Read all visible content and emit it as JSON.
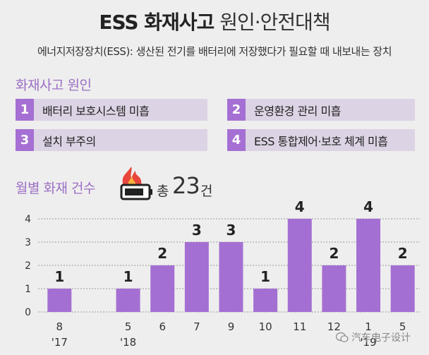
{
  "title_bold": "ESS 화재사고",
  "title_light": "원인·안전대책",
  "subtitle": "에너지저장장치(ESS): 생산된 전기를 배터리에 저장했다가 필요할 때 내보내는 장치",
  "causes_heading": "화재사고 원인",
  "causes": [
    {
      "num": "1",
      "text": "배터리 보호시스템 미흡"
    },
    {
      "num": "2",
      "text": "운영환경 관리 미흡"
    },
    {
      "num": "3",
      "text": "설치 부주의"
    },
    {
      "num": "4",
      "text": "ESS 통합제어·보호 체계 미흡"
    }
  ],
  "monthly_heading": "월별 화재 건수",
  "total_prefix": "총",
  "total_value": "23",
  "total_unit": "건",
  "watermark": "汽车电子设计",
  "colors": {
    "bar": "#a46fd2",
    "accent": "#9b6fc4",
    "cause_bg": "#dcd3e4",
    "flame": "#e8453c"
  },
  "chart_data": {
    "type": "bar",
    "categories": [
      "8 '17",
      "",
      "5 '18",
      "6",
      "7",
      "9",
      "10",
      "11",
      "12",
      "1 '19",
      "5"
    ],
    "x_tick_top": [
      "8",
      "",
      "5",
      "6",
      "7",
      "9",
      "10",
      "11",
      "12",
      "1",
      "5"
    ],
    "x_tick_bottom": [
      "'17",
      "",
      "'18",
      "",
      "",
      "",
      "",
      "",
      "",
      "'19",
      ""
    ],
    "values": [
      1,
      null,
      1,
      2,
      3,
      3,
      1,
      4,
      2,
      4,
      2
    ],
    "data_labels": [
      "1",
      "",
      "1",
      "2",
      "3",
      "3",
      "1",
      "4",
      "2",
      "4",
      "2"
    ],
    "y_ticks": [
      "0",
      "1",
      "2",
      "3",
      "4"
    ],
    "ylim": [
      0,
      4
    ],
    "grid": true
  }
}
